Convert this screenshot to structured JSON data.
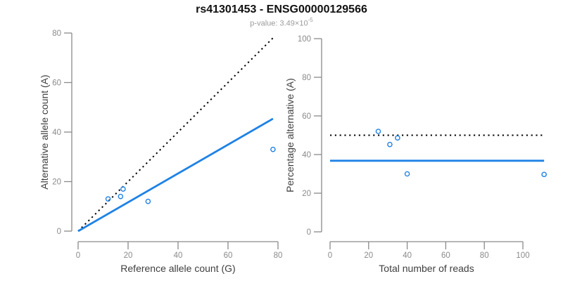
{
  "title": "rs41301453 - ENSG00000129566",
  "subtitle": {
    "text": "p-value: 3.49×10",
    "exponent": "-5"
  },
  "colors": {
    "accent_blue": "#1e82e6",
    "dotted_black": "#000000",
    "axis_line": "#8a8a8a",
    "tick_label": "#8a8a8a",
    "axis_title": "#3f3f3f",
    "title": "#111111",
    "subtitle": "#9b9b9b",
    "background": "#ffffff"
  },
  "chart_data": [
    {
      "type": "scatter",
      "name": "allele-counts",
      "xlabel": "Reference allele count (G)",
      "ylabel": "Alternative allele count (A)",
      "xlim": [
        0,
        80
      ],
      "ylim": [
        0,
        80
      ],
      "xticks": [
        0,
        20,
        40,
        60,
        80
      ],
      "yticks": [
        0,
        20,
        40,
        60,
        80
      ],
      "grid": false,
      "point_style": "open-circle",
      "points": [
        {
          "x": 12,
          "y": 13
        },
        {
          "x": 17,
          "y": 14
        },
        {
          "x": 18,
          "y": 17
        },
        {
          "x": 28,
          "y": 12
        },
        {
          "x": 78,
          "y": 33
        }
      ],
      "lines": [
        {
          "name": "identity-line",
          "style": "dotted",
          "color": "#000000",
          "from": [
            0,
            0
          ],
          "to": [
            78,
            78
          ]
        },
        {
          "name": "fit-line",
          "style": "solid",
          "color": "#1e82e6",
          "from": [
            0,
            0
          ],
          "to": [
            78,
            45.4
          ]
        }
      ]
    },
    {
      "type": "scatter",
      "name": "percentage-alternative",
      "xlabel": "Total number of reads",
      "ylabel": "Percentage alternative (A)",
      "xlim": [
        0,
        100
      ],
      "ylim": [
        0,
        100
      ],
      "xticks": [
        0,
        20,
        40,
        60,
        80,
        100
      ],
      "yticks": [
        0,
        20,
        40,
        60,
        80,
        100
      ],
      "grid": false,
      "point_style": "open-circle",
      "points": [
        {
          "x": 25,
          "y": 52
        },
        {
          "x": 31,
          "y": 45.2
        },
        {
          "x": 35,
          "y": 48.6
        },
        {
          "x": 40,
          "y": 30
        },
        {
          "x": 111,
          "y": 29.7
        }
      ],
      "lines": [
        {
          "name": "null-line",
          "style": "dotted",
          "color": "#000000",
          "from": [
            0,
            50
          ],
          "to": [
            111,
            50
          ]
        },
        {
          "name": "mean-line",
          "style": "solid",
          "color": "#1e82e6",
          "from": [
            0,
            36.8
          ],
          "to": [
            111,
            36.8
          ]
        }
      ]
    }
  ]
}
